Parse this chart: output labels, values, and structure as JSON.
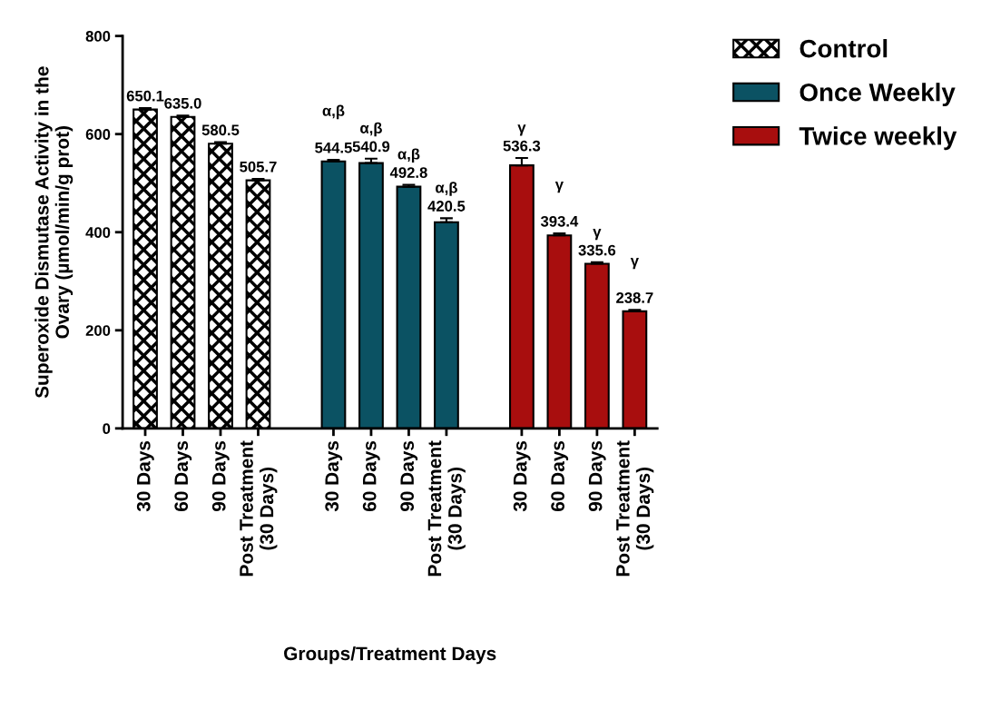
{
  "chart_data": {
    "type": "bar",
    "xlabel": "Groups/Treatment Days",
    "ylabel": "Superoxide Dismutase Activity in the\nOvary (µmol/min/g prot)",
    "categories": [
      "30 Days",
      "60 Days",
      "90 Days",
      "Post Treatment\n(30 Days)",
      null,
      "30 Days",
      "60 Days",
      "90 Days",
      "Post Treatment\n(30 Days)",
      null,
      "30 Days",
      "60 Days",
      "90 Days",
      "Post Treatment\n(30 Days)"
    ],
    "series": [
      {
        "name": "Control",
        "color": "#000000",
        "values": [
          650.1,
          635.0,
          580.5,
          505.7,
          null,
          null,
          null,
          null,
          null,
          null,
          null,
          null,
          null,
          null
        ],
        "errors": [
          3,
          3,
          3,
          3,
          null,
          null,
          null,
          null,
          null,
          null,
          null,
          null,
          null,
          null
        ],
        "value_labels": [
          "650.1",
          "635.0",
          "580.5",
          "505.7",
          null,
          null,
          null,
          null,
          null,
          null,
          null,
          null,
          null,
          null
        ]
      },
      {
        "name": "Once Weekly",
        "color": "#0b5263",
        "values": [
          null,
          null,
          null,
          null,
          null,
          544.5,
          540.9,
          492.8,
          420.5,
          null,
          null,
          null,
          null,
          null
        ],
        "errors": [
          null,
          null,
          null,
          null,
          null,
          3,
          9,
          4,
          8,
          null,
          null,
          null,
          null,
          null
        ],
        "value_labels": [
          null,
          null,
          null,
          null,
          null,
          "α,β\n\n544.5",
          "α,β\n540.9",
          "α,β\n492.8",
          "α,β\n420.5",
          null,
          null,
          null,
          null,
          null
        ]
      },
      {
        "name": "Twice weekly",
        "color": "#a80e0e",
        "values": [
          null,
          null,
          null,
          null,
          null,
          null,
          null,
          null,
          null,
          null,
          536.3,
          393.4,
          335.6,
          238.7
        ],
        "errors": [
          null,
          null,
          null,
          null,
          null,
          null,
          null,
          null,
          null,
          null,
          15,
          4,
          3,
          3
        ],
        "value_labels": [
          null,
          null,
          null,
          null,
          null,
          null,
          null,
          null,
          null,
          null,
          "γ\n536.3",
          "γ\n\n393.4",
          "γ\n335.6",
          "γ\n\n238.7"
        ]
      }
    ],
    "ylim": [
      0,
      800
    ],
    "yticks": [
      0,
      200,
      400,
      600,
      800
    ],
    "grid": false,
    "legend": "top right"
  }
}
